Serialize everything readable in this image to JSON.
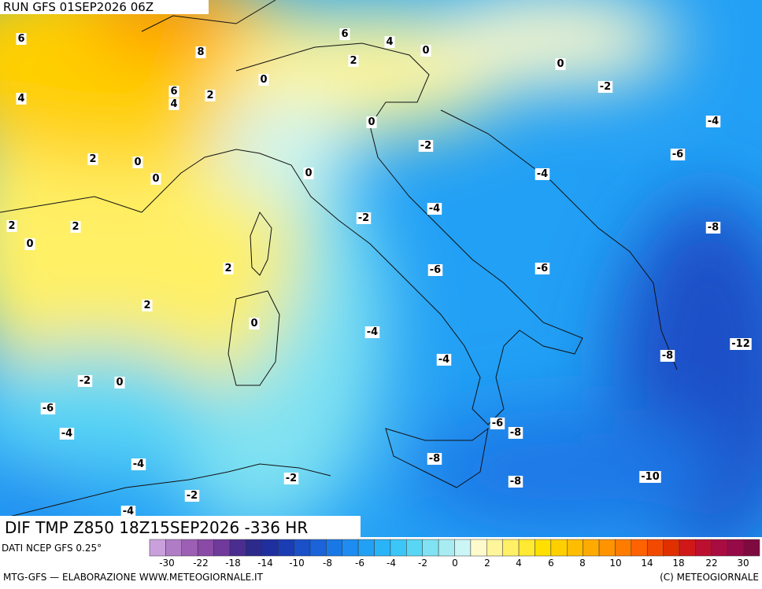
{
  "header": {
    "run": "RUN GFS 01SEP2026 06Z"
  },
  "map": {
    "title": "DIF TMP Z850 18Z15SEP2026 -336 HR",
    "contour_labels": [
      "6",
      "8",
      "6",
      "4",
      "0",
      "0",
      "2",
      "0",
      "6",
      "2",
      "4",
      "4",
      "-2",
      "0",
      "-4",
      "-2",
      "-6",
      "2",
      "0",
      "0",
      "0",
      "-4",
      "-2",
      "-4",
      "2",
      "2",
      "0",
      "-8",
      "2",
      "-6",
      "-6",
      "2",
      "0",
      "-4",
      "-12",
      "-8",
      "-4",
      "-2",
      "0",
      "-6",
      "-6",
      "-8",
      "-4",
      "-8",
      "-4",
      "-2",
      "-8",
      "-10",
      "-2",
      "-4"
    ]
  },
  "legend": {
    "source": "DATI NCEP GFS 0.25°",
    "colors": [
      "#c9a0dc",
      "#b07cc6",
      "#9c5fb5",
      "#8a4aa6",
      "#6f3a9c",
      "#4b2d8f",
      "#2c2a8a",
      "#1f2f9e",
      "#1a3db4",
      "#1a50c8",
      "#1a63d8",
      "#1a78e6",
      "#1e8cf0",
      "#22a0f5",
      "#2ab4f8",
      "#3cc6f8",
      "#5ad6f5",
      "#80e2f2",
      "#a8ecf2",
      "#ccf5f5",
      "#fffacc",
      "#fff59a",
      "#fff066",
      "#ffe933",
      "#ffdf00",
      "#ffcf00",
      "#ffbd00",
      "#ffaa00",
      "#ff9400",
      "#ff7c00",
      "#ff6200",
      "#f24a00",
      "#e03000",
      "#d01818",
      "#bc1030",
      "#a80c40",
      "#960a48",
      "#7e0a40"
    ],
    "labels": [
      "-30",
      "-22",
      "-18",
      "-14",
      "-10",
      "-8",
      "-6",
      "-4",
      "-2",
      "0",
      "2",
      "4",
      "6",
      "8",
      "10",
      "14",
      "18",
      "22",
      "30"
    ]
  },
  "footer": {
    "left": "MTG-GFS — ELABORAZIONE WWW.METEOGIORNALE.IT",
    "right": "(C) METEOGIORNALE"
  }
}
